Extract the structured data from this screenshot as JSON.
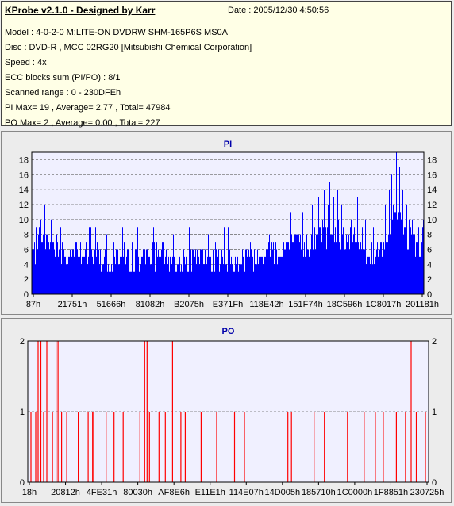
{
  "header": {
    "title": "KProbe v2.1.0 - Designed by Karr",
    "date": "Date : 2005/12/30 4:50:56",
    "lines": [
      "Model : 4-0-2-0 M:LITE-ON DVDRW SHM-165P6S MS0A",
      "Disc : DVD-R , MCC 02RG20   [Mitsubishi Chemical Corporation]",
      "Speed : 4x",
      "ECC blocks sum (PI/PO) : 8/1",
      "Scanned range : 0 - 230DFEh",
      "PI Max= 19 , Average= 2.77 , Total= 47984",
      "PO Max= 2 , Average= 0.00 , Total= 227"
    ]
  },
  "colors": {
    "pi": "#0000ff",
    "po": "#ff0000",
    "title": "#0000aa"
  },
  "chart_data": [
    {
      "type": "bar",
      "title": "PI",
      "ylim": [
        0,
        19
      ],
      "yticks": [
        0,
        2,
        4,
        6,
        8,
        10,
        12,
        14,
        16,
        18
      ],
      "xticks": [
        "87h",
        "21751h",
        "51666h",
        "81082h",
        "B2075h",
        "E371Fh",
        "118E42h",
        "151F74h",
        "18C596h",
        "1C8017h",
        "201181h"
      ],
      "grid": true,
      "profile": [
        [
          0,
          5
        ],
        [
          3,
          6
        ],
        [
          5,
          6
        ],
        [
          8,
          5
        ],
        [
          12,
          5
        ],
        [
          16,
          5
        ],
        [
          20,
          4
        ],
        [
          25,
          4
        ],
        [
          30,
          4
        ],
        [
          35,
          4
        ],
        [
          40,
          4
        ],
        [
          45,
          4
        ],
        [
          50,
          4
        ],
        [
          55,
          4
        ],
        [
          58,
          5
        ],
        [
          62,
          5
        ],
        [
          66,
          6
        ],
        [
          70,
          6
        ],
        [
          74,
          7
        ],
        [
          77,
          8
        ],
        [
          80,
          7
        ],
        [
          83,
          7
        ],
        [
          86,
          5
        ],
        [
          89,
          6
        ],
        [
          92,
          10
        ],
        [
          94,
          8
        ],
        [
          97,
          6
        ],
        [
          100,
          6
        ]
      ],
      "peaks": [
        [
          1.0,
          9
        ],
        [
          2.0,
          10
        ],
        [
          3.2,
          12
        ],
        [
          4.0,
          13
        ],
        [
          4.8,
          10
        ],
        [
          6.0,
          11
        ],
        [
          7.2,
          9
        ],
        [
          9.0,
          10
        ],
        [
          12.0,
          9
        ],
        [
          15.0,
          9
        ],
        [
          19.0,
          8
        ],
        [
          23.0,
          9
        ],
        [
          27.0,
          9
        ],
        [
          31.0,
          9
        ],
        [
          36.0,
          8
        ],
        [
          40.0,
          9
        ],
        [
          45.0,
          8
        ],
        [
          49.0,
          9
        ],
        [
          54.0,
          9
        ],
        [
          58.0,
          9
        ],
        [
          62.0,
          10
        ],
        [
          66.0,
          10
        ],
        [
          69.0,
          11
        ],
        [
          71.5,
          12
        ],
        [
          73.0,
          13
        ],
        [
          74.5,
          14
        ],
        [
          75.5,
          12
        ],
        [
          76.0,
          15
        ],
        [
          77.0,
          13
        ],
        [
          78.0,
          14
        ],
        [
          79.0,
          12
        ],
        [
          80.5,
          14
        ],
        [
          81.5,
          12
        ],
        [
          83.0,
          13
        ],
        [
          85.0,
          10
        ],
        [
          87.0,
          9
        ],
        [
          88.5,
          10
        ],
        [
          90.0,
          12
        ],
        [
          91.0,
          14
        ],
        [
          91.8,
          16
        ],
        [
          92.3,
          19
        ],
        [
          93.0,
          19
        ],
        [
          93.7,
          17
        ],
        [
          94.5,
          14
        ],
        [
          95.5,
          12
        ],
        [
          97.0,
          10
        ],
        [
          98.5,
          9
        ],
        [
          99.5,
          9
        ]
      ]
    },
    {
      "type": "bar",
      "title": "PO",
      "ylim": [
        0,
        2
      ],
      "yticks": [
        0,
        1,
        2
      ],
      "xticks": [
        "18h",
        "20812h",
        "4FE31h",
        "80030h",
        "AF8E6h",
        "E11E1h",
        "114E07h",
        "14D005h",
        "185710h",
        "1C0000h",
        "1F8851h",
        "230725h"
      ],
      "grid": true,
      "bars": [
        [
          0.4,
          1
        ],
        [
          1.6,
          1
        ],
        [
          2.2,
          2
        ],
        [
          2.9,
          2
        ],
        [
          3.6,
          1
        ],
        [
          4.4,
          2
        ],
        [
          5.8,
          1
        ],
        [
          6.7,
          2
        ],
        [
          7.2,
          2
        ],
        [
          8.1,
          1
        ],
        [
          9.4,
          1
        ],
        [
          12.3,
          1
        ],
        [
          14.8,
          1
        ],
        [
          15.9,
          1
        ],
        [
          16.2,
          1
        ],
        [
          19.3,
          1
        ],
        [
          21.3,
          1
        ],
        [
          23.6,
          1
        ],
        [
          27.8,
          1
        ],
        [
          29.0,
          2
        ],
        [
          29.6,
          2
        ],
        [
          30.2,
          1
        ],
        [
          32.6,
          1
        ],
        [
          34.2,
          1
        ],
        [
          36.0,
          2
        ],
        [
          38.1,
          1
        ],
        [
          39.2,
          1
        ],
        [
          43.2,
          1
        ],
        [
          47.1,
          1
        ],
        [
          51.6,
          1
        ],
        [
          54.1,
          1
        ],
        [
          65.0,
          1
        ],
        [
          65.9,
          1
        ],
        [
          71.6,
          1
        ],
        [
          74.2,
          1
        ],
        [
          80.0,
          1
        ],
        [
          84.2,
          1
        ],
        [
          87.0,
          1
        ],
        [
          89.0,
          1
        ],
        [
          92.3,
          1
        ],
        [
          94.6,
          1
        ],
        [
          96.0,
          2
        ],
        [
          97.3,
          1
        ],
        [
          99.6,
          1
        ]
      ]
    }
  ]
}
